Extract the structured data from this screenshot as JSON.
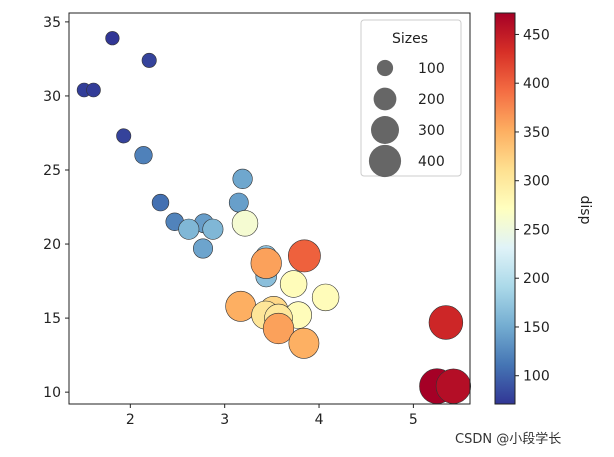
{
  "chart_data": {
    "type": "scatter",
    "title": "",
    "xlabel": "",
    "ylabel": "",
    "xlim": [
      1.35,
      5.6
    ],
    "ylim": [
      9.2,
      35.6
    ],
    "x_ticks": [
      2,
      3,
      4,
      5
    ],
    "y_ticks": [
      10,
      15,
      20,
      25,
      30,
      35
    ],
    "grid": false,
    "marker_size_scale": 0.65,
    "points": [
      {
        "x": 1.81,
        "y": 33.9,
        "disp": 71
      },
      {
        "x": 2.2,
        "y": 32.4,
        "disp": 79
      },
      {
        "x": 1.51,
        "y": 30.4,
        "disp": 76
      },
      {
        "x": 1.61,
        "y": 30.4,
        "disp": 75
      },
      {
        "x": 1.93,
        "y": 27.3,
        "disp": 79
      },
      {
        "x": 2.14,
        "y": 26.0,
        "disp": 120
      },
      {
        "x": 2.32,
        "y": 22.8,
        "disp": 108
      },
      {
        "x": 2.47,
        "y": 21.5,
        "disp": 121
      },
      {
        "x": 2.78,
        "y": 21.4,
        "disp": 140
      },
      {
        "x": 2.62,
        "y": 21.0,
        "disp": 160
      },
      {
        "x": 2.875,
        "y": 21.0,
        "disp": 160
      },
      {
        "x": 2.77,
        "y": 19.7,
        "disp": 145
      },
      {
        "x": 3.19,
        "y": 24.4,
        "disp": 147
      },
      {
        "x": 3.15,
        "y": 22.8,
        "disp": 141
      },
      {
        "x": 3.215,
        "y": 21.4,
        "disp": 258
      },
      {
        "x": 3.44,
        "y": 19.2,
        "disp": 168
      },
      {
        "x": 3.44,
        "y": 17.8,
        "disp": 168
      },
      {
        "x": 3.44,
        "y": 18.7,
        "disp": 360
      },
      {
        "x": 3.845,
        "y": 19.2,
        "disp": 400
      },
      {
        "x": 3.73,
        "y": 17.3,
        "disp": 276
      },
      {
        "x": 4.07,
        "y": 16.4,
        "disp": 276
      },
      {
        "x": 3.17,
        "y": 15.8,
        "disp": 351
      },
      {
        "x": 3.52,
        "y": 15.5,
        "disp": 318
      },
      {
        "x": 3.435,
        "y": 15.2,
        "disp": 304
      },
      {
        "x": 3.78,
        "y": 15.2,
        "disp": 276
      },
      {
        "x": 3.57,
        "y": 15.0,
        "disp": 301
      },
      {
        "x": 3.57,
        "y": 14.3,
        "disp": 360
      },
      {
        "x": 3.84,
        "y": 13.3,
        "disp": 350
      },
      {
        "x": 5.345,
        "y": 14.7,
        "disp": 440
      },
      {
        "x": 5.25,
        "y": 10.4,
        "disp": 472
      },
      {
        "x": 5.424,
        "y": 10.4,
        "disp": 460
      }
    ],
    "color_by": "disp",
    "size_by": "disp",
    "colormap": "RdYlBu_r",
    "colorbar": {
      "label": "disp",
      "range": [
        71,
        472
      ],
      "ticks": [
        100,
        150,
        200,
        250,
        300,
        350,
        400,
        450
      ]
    },
    "legend": {
      "title": "Sizes",
      "placement": "top-right",
      "entries": [
        {
          "label": "100",
          "size": 100
        },
        {
          "label": "200",
          "size": 200
        },
        {
          "label": "300",
          "size": 300
        },
        {
          "label": "400",
          "size": 400
        }
      ],
      "marker_color": "#555555"
    }
  },
  "watermark": "CSDN @小段学长"
}
